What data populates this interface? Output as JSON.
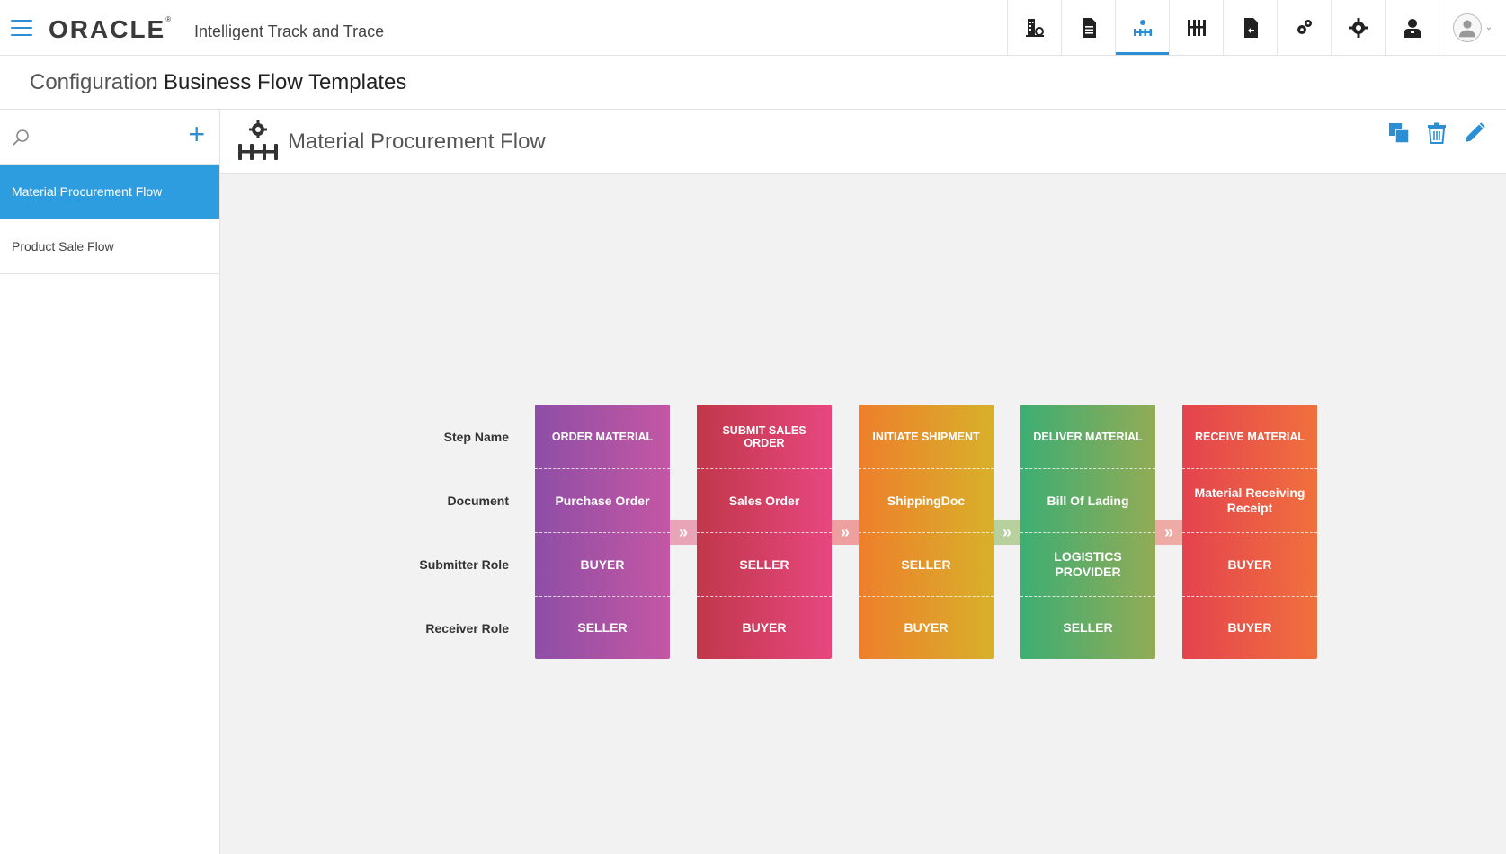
{
  "header": {
    "brand": "ORACLE",
    "brand_mark": "®",
    "product": "Intelligent Track and Trace",
    "nav_icons": [
      "building-icon",
      "document-icon",
      "business-flow-icon",
      "flow-template-icon",
      "document-export-icon",
      "settings-group-icon",
      "gear-icon",
      "user-badge-icon"
    ],
    "active_nav": "business-flow-icon"
  },
  "titlebar": {
    "section": "Configuration",
    "separator": ":",
    "title": "Business Flow Templates"
  },
  "sidebar": {
    "items": [
      {
        "label": "Material Procurement Flow",
        "selected": true
      },
      {
        "label": "Product Sale Flow",
        "selected": false
      }
    ]
  },
  "main": {
    "flow_title": "Material Procurement Flow",
    "actions": [
      "copy-icon",
      "delete-icon",
      "edit-icon"
    ]
  },
  "diagram": {
    "row_labels": [
      "Step Name",
      "Document",
      "Submitter Role",
      "Receiver Role"
    ],
    "connector_glyph": "»",
    "steps": [
      {
        "name": "ORDER MATERIAL",
        "document": "Purchase Order",
        "submitter": "BUYER",
        "receiver": "SELLER",
        "colors": [
          "#8e4ea6",
          "#c457a3"
        ]
      },
      {
        "name": "SUBMIT SALES ORDER",
        "document": "Sales Order",
        "submitter": "SELLER",
        "receiver": "BUYER",
        "colors": [
          "#c1374a",
          "#e7477f"
        ]
      },
      {
        "name": "INITIATE SHIPMENT",
        "document": "ShippingDoc",
        "submitter": "SELLER",
        "receiver": "BUYER",
        "colors": [
          "#ee7f2c",
          "#d8b02a"
        ]
      },
      {
        "name": "DELIVER MATERIAL",
        "document": "Bill Of Lading",
        "submitter": "LOGISTICS PROVIDER",
        "receiver": "SELLER",
        "colors": [
          "#3dae73",
          "#92ab56"
        ]
      },
      {
        "name": "RECEIVE MATERIAL",
        "document": "Material Receiving Receipt",
        "submitter": "BUYER",
        "receiver": "BUYER",
        "colors": [
          "#e4434e",
          "#f0703d"
        ]
      }
    ],
    "connector_colors": [
      "#e9a5b8",
      "#eea0a0",
      "#b8cf9e",
      "#eeaaa5"
    ]
  },
  "colors": {
    "accent": "#2b8fd6",
    "selected_bg": "#2e9de0"
  }
}
